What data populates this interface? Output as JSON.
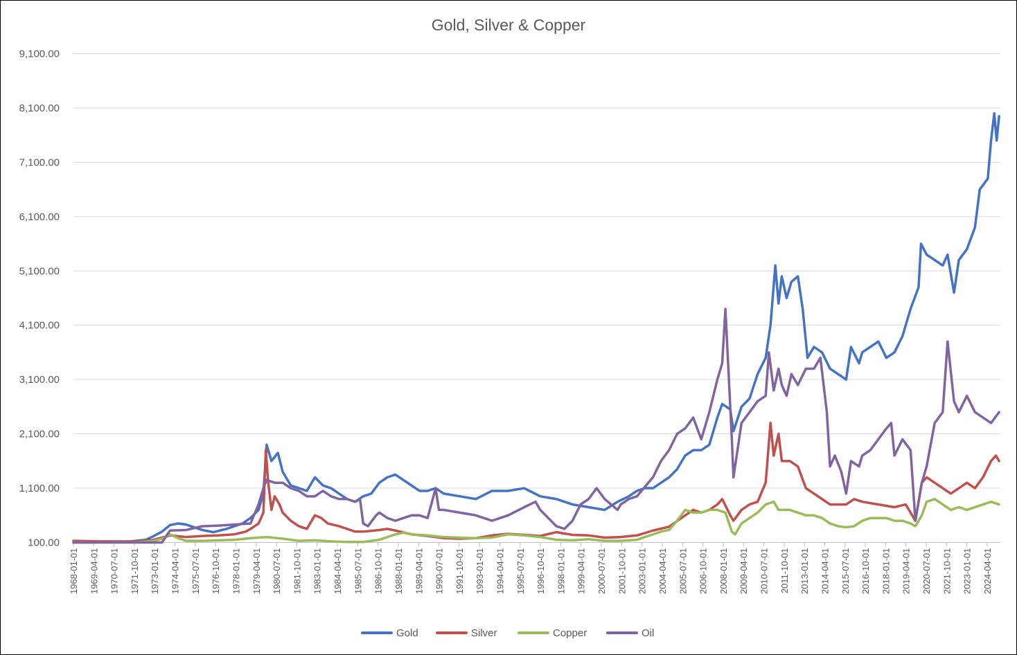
{
  "chart_data": {
    "type": "line",
    "title": "Gold, Silver & Copper",
    "xlabel": "",
    "ylabel": "",
    "ylim": [
      100,
      9100
    ],
    "yticks": [
      "100.00",
      "1,100.00",
      "2,100.00",
      "3,100.00",
      "4,100.00",
      "5,100.00",
      "6,100.00",
      "7,100.00",
      "8,100.00",
      "9,100.00"
    ],
    "ytick_values": [
      100,
      1100,
      2100,
      3100,
      4100,
      5100,
      6100,
      7100,
      8100,
      9100
    ],
    "xlim": [
      1968.0,
      2025.58
    ],
    "xticks": [
      "1968-01-01",
      "1969-04-01",
      "1970-07-01",
      "1971-10-01",
      "1973-01-01",
      "1974-04-01",
      "1975-07-01",
      "1976-10-01",
      "1978-01-01",
      "1979-04-01",
      "1980-07-01",
      "1981-10-01",
      "1983-01-01",
      "1984-04-01",
      "1985-07-01",
      "1986-10-01",
      "1988-01-01",
      "1989-04-01",
      "1990-07-01",
      "1991-10-01",
      "1993-01-01",
      "1994-04-01",
      "1995-07-01",
      "1996-10-01",
      "1998-01-01",
      "1999-04-01",
      "2000-07-01",
      "2001-10-01",
      "2003-01-01",
      "2004-04-01",
      "2005-07-01",
      "2006-10-01",
      "2008-01-01",
      "2009-04-01",
      "2010-07-01",
      "2011-10-01",
      "2013-01-01",
      "2014-04-01",
      "2015-07-01",
      "2016-10-01",
      "2018-01-01",
      "2019-04-01",
      "2020-07-01",
      "2021-10-01",
      "2023-01-01",
      "2024-04-01"
    ],
    "grid": true,
    "legend": "bottom",
    "series": [
      {
        "name": "Gold",
        "color": "#4472C4",
        "x": [
          1968.0,
          1970.0,
          1971.5,
          1972.5,
          1973.0,
          1973.5,
          1974.0,
          1974.5,
          1975.0,
          1975.5,
          1976.0,
          1976.7,
          1977.5,
          1978.5,
          1979.0,
          1979.5,
          1979.8,
          1980.0,
          1980.3,
          1980.7,
          1981.0,
          1981.5,
          1982.0,
          1982.5,
          1983.0,
          1983.5,
          1984.0,
          1984.5,
          1985.0,
          1985.5,
          1986.0,
          1986.5,
          1987.0,
          1987.5,
          1988.0,
          1988.5,
          1989.0,
          1989.5,
          1990.0,
          1990.5,
          1991.0,
          1992.0,
          1993.0,
          1994.0,
          1995.0,
          1996.0,
          1997.0,
          1998.0,
          1999.0,
          2000.0,
          2001.0,
          2001.8,
          2002.5,
          2003.0,
          2003.5,
          2004.0,
          2004.5,
          2005.0,
          2005.5,
          2006.0,
          2006.5,
          2007.0,
          2007.5,
          2008.0,
          2008.3,
          2008.8,
          2009.0,
          2009.5,
          2010.0,
          2010.5,
          2011.0,
          2011.3,
          2011.6,
          2011.8,
          2012.0,
          2012.3,
          2012.6,
          2013.0,
          2013.3,
          2013.6,
          2014.0,
          2014.5,
          2015.0,
          2015.5,
          2016.0,
          2016.3,
          2016.8,
          2017.0,
          2017.5,
          2018.0,
          2018.5,
          2019.0,
          2019.5,
          2020.0,
          2020.5,
          2020.65,
          2021.0,
          2021.5,
          2022.0,
          2022.3,
          2022.7,
          2023.0,
          2023.5,
          2024.0,
          2024.3,
          2024.8,
          2025.0,
          2025.2,
          2025.35,
          2025.5
        ],
        "y": [
          100,
          110,
          120,
          150,
          220,
          300,
          420,
          450,
          430,
          380,
          330,
          290,
          350,
          450,
          550,
          700,
          1000,
          1900,
          1600,
          1750,
          1400,
          1150,
          1100,
          1050,
          1300,
          1150,
          1100,
          1000,
          900,
          850,
          950,
          1000,
          1200,
          1300,
          1350,
          1250,
          1150,
          1050,
          1050,
          1100,
          1000,
          950,
          900,
          1050,
          1050,
          1100,
          950,
          900,
          800,
          750,
          700,
          850,
          950,
          1050,
          1100,
          1100,
          1200,
          1300,
          1450,
          1700,
          1800,
          1800,
          1900,
          2400,
          2650,
          2550,
          2150,
          2600,
          2750,
          3200,
          3500,
          4100,
          5200,
          4500,
          5000,
          4600,
          4900,
          5000,
          4400,
          3500,
          3700,
          3600,
          3300,
          3200,
          3100,
          3700,
          3400,
          3600,
          3700,
          3800,
          3500,
          3600,
          3900,
          4400,
          4800,
          5600,
          5400,
          5300,
          5200,
          5400,
          4700,
          5300,
          5500,
          5900,
          6600,
          6800,
          7500,
          8000,
          7500,
          7950
        ]
      },
      {
        "name": "Silver",
        "color": "#C0504D",
        "x": [
          1968.0,
          1970.0,
          1972.0,
          1973.0,
          1974.0,
          1975.0,
          1976.0,
          1977.0,
          1978.0,
          1978.7,
          1979.0,
          1979.5,
          1979.8,
          1979.95,
          1980.1,
          1980.3,
          1980.5,
          1980.8,
          1981.0,
          1981.5,
          1982.0,
          1982.5,
          1983.0,
          1983.4,
          1983.8,
          1984.5,
          1985.0,
          1985.5,
          1986.0,
          1987.0,
          1987.5,
          1988.0,
          1989.0,
          1990.0,
          1991.0,
          1992.0,
          1993.0,
          1994.0,
          1995.0,
          1996.0,
          1997.0,
          1998.0,
          1999.0,
          2000.0,
          2001.0,
          2002.0,
          2003.0,
          2004.0,
          2005.0,
          2006.0,
          2006.5,
          2007.0,
          2007.5,
          2008.0,
          2008.3,
          2008.8,
          2009.0,
          2009.5,
          2010.0,
          2010.5,
          2011.0,
          2011.3,
          2011.5,
          2011.8,
          2012.0,
          2012.5,
          2013.0,
          2013.5,
          2014.0,
          2014.5,
          2015.0,
          2016.0,
          2016.5,
          2017.0,
          2018.0,
          2019.0,
          2019.7,
          2020.1,
          2020.3,
          2020.7,
          2021.0,
          2021.5,
          2022.0,
          2022.5,
          2023.0,
          2023.5,
          2024.0,
          2024.5,
          2025.0,
          2025.3,
          2025.5
        ],
        "y": [
          130,
          120,
          120,
          150,
          230,
          200,
          220,
          230,
          250,
          300,
          350,
          450,
          650,
          1800,
          1200,
          700,
          950,
          800,
          650,
          500,
          400,
          350,
          600,
          550,
          450,
          400,
          350,
          300,
          300,
          330,
          350,
          320,
          250,
          220,
          180,
          170,
          180,
          230,
          260,
          240,
          220,
          290,
          240,
          230,
          190,
          200,
          230,
          320,
          390,
          600,
          700,
          650,
          700,
          800,
          900,
          600,
          500,
          700,
          800,
          850,
          1200,
          2300,
          1700,
          2100,
          1600,
          1600,
          1500,
          1100,
          1000,
          900,
          800,
          800,
          900,
          850,
          800,
          750,
          800,
          600,
          500,
          1200,
          1300,
          1200,
          1100,
          1000,
          1100,
          1200,
          1100,
          1300,
          1600,
          1700,
          1600
        ]
      },
      {
        "name": "Copper",
        "color": "#9BBB59",
        "x": [
          1968.0,
          1972.0,
          1973.0,
          1973.5,
          1974.0,
          1974.5,
          1975.0,
          1976.0,
          1977.0,
          1978.0,
          1979.0,
          1980.0,
          1981.0,
          1982.0,
          1983.0,
          1984.0,
          1985.0,
          1986.0,
          1987.0,
          1987.5,
          1988.0,
          1988.5,
          1989.0,
          1990.0,
          1991.0,
          1992.0,
          1993.0,
          1994.0,
          1995.0,
          1996.0,
          1997.0,
          1998.0,
          1999.0,
          2000.0,
          2001.0,
          2002.0,
          2003.0,
          2004.0,
          2004.5,
          2005.0,
          2005.5,
          2006.0,
          2006.5,
          2007.0,
          2007.5,
          2008.0,
          2008.5,
          2008.9,
          2009.1,
          2009.5,
          2010.0,
          2010.5,
          2011.0,
          2011.5,
          2011.8,
          2012.0,
          2012.5,
          2013.0,
          2013.5,
          2014.0,
          2014.5,
          2015.0,
          2015.5,
          2016.0,
          2016.5,
          2017.0,
          2017.5,
          2018.0,
          2018.5,
          2019.0,
          2019.5,
          2020.0,
          2020.3,
          2020.7,
          2021.0,
          2021.5,
          2022.0,
          2022.5,
          2023.0,
          2023.5,
          2024.0,
          2024.5,
          2025.0,
          2025.5
        ],
        "y": [
          100,
          105,
          130,
          170,
          250,
          180,
          130,
          130,
          140,
          150,
          180,
          200,
          170,
          130,
          140,
          120,
          110,
          110,
          150,
          200,
          250,
          280,
          250,
          230,
          200,
          190,
          180,
          190,
          250,
          230,
          200,
          150,
          140,
          160,
          130,
          130,
          150,
          250,
          300,
          330,
          500,
          700,
          650,
          650,
          700,
          700,
          650,
          300,
          250,
          450,
          550,
          650,
          800,
          850,
          700,
          700,
          700,
          650,
          600,
          600,
          550,
          450,
          400,
          380,
          400,
          500,
          550,
          550,
          550,
          500,
          500,
          450,
          400,
          600,
          850,
          900,
          800,
          700,
          750,
          700,
          750,
          800,
          850,
          800
        ]
      },
      {
        "name": "Oil",
        "color": "#8064A2",
        "x": [
          1968.0,
          1973.5,
          1974.0,
          1975.0,
          1976.0,
          1977.0,
          1978.0,
          1979.0,
          1979.5,
          1979.8,
          1980.0,
          1980.5,
          1981.0,
          1981.5,
          1982.0,
          1982.5,
          1983.0,
          1983.5,
          1984.0,
          1984.5,
          1985.0,
          1985.5,
          1985.8,
          1986.0,
          1986.3,
          1986.8,
          1987.0,
          1987.5,
          1988.0,
          1988.5,
          1989.0,
          1989.5,
          1990.0,
          1990.5,
          1990.7,
          1991.0,
          1992.0,
          1993.0,
          1994.0,
          1995.0,
          1996.0,
          1996.7,
          1997.0,
          1998.0,
          1998.5,
          1999.0,
          1999.5,
          2000.0,
          2000.5,
          2001.0,
          2001.8,
          2002.0,
          2002.5,
          2003.0,
          2004.0,
          2004.5,
          2005.0,
          2005.5,
          2006.0,
          2006.5,
          2007.0,
          2007.5,
          2008.0,
          2008.3,
          2008.5,
          2008.9,
          2009.0,
          2009.5,
          2010.0,
          2010.5,
          2011.0,
          2011.2,
          2011.5,
          2011.8,
          2012.0,
          2012.3,
          2012.6,
          2013.0,
          2013.5,
          2014.0,
          2014.4,
          2014.8,
          2015.0,
          2015.3,
          2015.7,
          2016.0,
          2016.3,
          2016.8,
          2017.0,
          2017.5,
          2018.0,
          2018.5,
          2018.8,
          2019.0,
          2019.5,
          2020.0,
          2020.3,
          2020.7,
          2021.0,
          2021.5,
          2022.0,
          2022.3,
          2022.7,
          2023.0,
          2023.5,
          2024.0,
          2024.5,
          2025.0,
          2025.5
        ],
        "y": [
          100,
          100,
          320,
          330,
          400,
          410,
          430,
          450,
          800,
          1100,
          1250,
          1200,
          1200,
          1100,
          1050,
          950,
          950,
          1050,
          950,
          900,
          900,
          850,
          900,
          450,
          400,
          600,
          650,
          550,
          500,
          550,
          600,
          600,
          550,
          1100,
          700,
          700,
          650,
          600,
          500,
          600,
          750,
          850,
          700,
          400,
          350,
          500,
          800,
          900,
          1100,
          900,
          700,
          800,
          900,
          950,
          1300,
          1600,
          1800,
          2100,
          2200,
          2400,
          2000,
          2500,
          3100,
          3400,
          4400,
          2000,
          1300,
          2300,
          2500,
          2700,
          2800,
          3600,
          2900,
          3300,
          3000,
          2800,
          3200,
          3000,
          3300,
          3300,
          3500,
          2500,
          1500,
          1700,
          1400,
          1000,
          1600,
          1500,
          1700,
          1800,
          2000,
          2200,
          2300,
          1700,
          2000,
          1800,
          500,
          1200,
          1500,
          2300,
          2500,
          3800,
          2700,
          2500,
          2800,
          2500,
          2400,
          2300,
          2500
        ]
      }
    ]
  }
}
